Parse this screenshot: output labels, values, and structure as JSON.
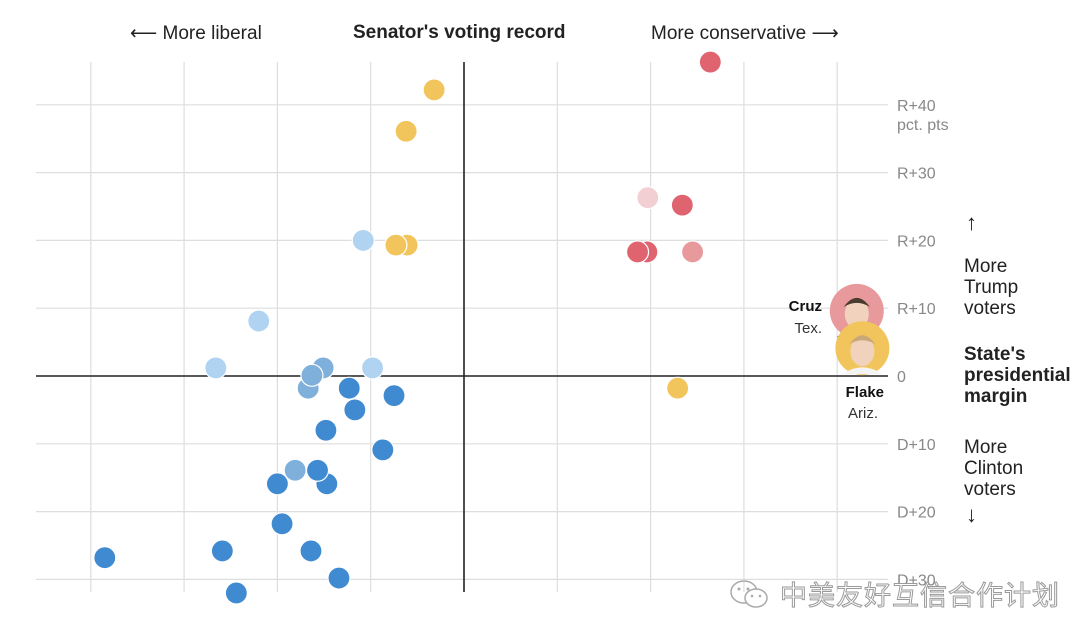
{
  "chart_data": {
    "type": "scatter",
    "title": "Senator's voting record",
    "xlabel_left": "More liberal",
    "xlabel_right": "More conservative",
    "ylabel": "State's presidential margin",
    "ylabel_top": "More Trump voters",
    "ylabel_bottom": "More Clinton voters",
    "y_unit_note": "pct. pts",
    "xlim": [
      -4.6,
      4.0
    ],
    "ylim": [
      -32,
      46
    ],
    "x_gridlines": [
      -4,
      -3,
      -2,
      -1,
      1,
      2,
      3,
      4
    ],
    "y_ticks": [
      {
        "value": 40,
        "label": "R+40"
      },
      {
        "value": 30,
        "label": "R+30"
      },
      {
        "value": 20,
        "label": "R+20"
      },
      {
        "value": 10,
        "label": "R+10"
      },
      {
        "value": 0,
        "label": "0"
      },
      {
        "value": -10,
        "label": "D+10"
      },
      {
        "value": -20,
        "label": "D+20"
      },
      {
        "value": -30,
        "label": "D+30"
      }
    ],
    "grid": true,
    "colors": {
      "republican": "#e06470",
      "republican_light": "#e8999c",
      "republican_pale": "#f2cfd3",
      "democrat": "#3f8ad0",
      "democrat_mid": "#7fb0dc",
      "democrat_light": "#afd3f0",
      "highlight": "#f2c55c"
    },
    "points": [
      {
        "x": 2.64,
        "y": 46.3,
        "color": "republican"
      },
      {
        "x": -0.32,
        "y": 42.2,
        "color": "highlight"
      },
      {
        "x": -0.62,
        "y": 36.1,
        "color": "highlight"
      },
      {
        "x": 1.97,
        "y": 26.3,
        "color": "republican_pale"
      },
      {
        "x": 2.34,
        "y": 25.2,
        "color": "republican"
      },
      {
        "x": -1.08,
        "y": 20.0,
        "color": "democrat_light"
      },
      {
        "x": -0.61,
        "y": 19.3,
        "color": "highlight"
      },
      {
        "x": -0.73,
        "y": 19.3,
        "color": "highlight"
      },
      {
        "x": 1.96,
        "y": 18.3,
        "color": "republican"
      },
      {
        "x": 1.86,
        "y": 18.3,
        "color": "republican"
      },
      {
        "x": 2.45,
        "y": 18.3,
        "color": "republican_light"
      },
      {
        "x": -2.2,
        "y": 8.1,
        "color": "democrat_light"
      },
      {
        "x": -2.66,
        "y": 1.2,
        "color": "democrat_light"
      },
      {
        "x": -0.98,
        "y": 1.2,
        "color": "democrat_light"
      },
      {
        "x": -1.51,
        "y": 1.2,
        "color": "democrat_mid"
      },
      {
        "x": -1.67,
        "y": -1.8,
        "color": "democrat_mid"
      },
      {
        "x": -1.63,
        "y": 0.1,
        "color": "democrat_mid"
      },
      {
        "x": -1.23,
        "y": -1.8,
        "color": "democrat"
      },
      {
        "x": -0.75,
        "y": -2.9,
        "color": "democrat"
      },
      {
        "x": -1.17,
        "y": -5.0,
        "color": "democrat"
      },
      {
        "x": -1.48,
        "y": -8.0,
        "color": "democrat"
      },
      {
        "x": -0.87,
        "y": -10.9,
        "color": "democrat"
      },
      {
        "x": -1.81,
        "y": -13.9,
        "color": "democrat_mid"
      },
      {
        "x": -1.47,
        "y": -15.9,
        "color": "democrat"
      },
      {
        "x": -1.57,
        "y": -13.9,
        "color": "democrat"
      },
      {
        "x": -2.0,
        "y": -15.9,
        "color": "democrat"
      },
      {
        "x": -1.95,
        "y": -21.8,
        "color": "democrat"
      },
      {
        "x": -3.85,
        "y": -26.8,
        "color": "democrat"
      },
      {
        "x": -2.59,
        "y": -25.8,
        "color": "democrat"
      },
      {
        "x": -1.64,
        "y": -25.8,
        "color": "democrat"
      },
      {
        "x": -1.34,
        "y": -29.8,
        "color": "democrat"
      },
      {
        "x": -2.44,
        "y": -32.0,
        "color": "democrat"
      },
      {
        "x": 2.29,
        "y": -1.8,
        "color": "highlight"
      }
    ],
    "annotations": [
      {
        "name": "Cruz",
        "state": "Tex.",
        "x": 4.21,
        "y": 9.6,
        "ring": "republican_light",
        "photo": "cruz-portrait"
      },
      {
        "name": "Flake",
        "state": "Ariz.",
        "x": 4.27,
        "y": 4.1,
        "ring": "highlight",
        "photo": "flake-portrait"
      }
    ]
  },
  "header": {
    "left": "More liberal",
    "center": "Senator's voting record",
    "right": "More conservative"
  },
  "side_labels": {
    "trump": [
      "More",
      "Trump",
      "voters"
    ],
    "margin": [
      "State's",
      "presidential",
      "margin"
    ],
    "clinton": [
      "More",
      "Clinton",
      "voters"
    ],
    "unit": "pct. pts"
  },
  "watermark": {
    "icon": "wechat-icon",
    "text": "中美友好互信合作计划"
  }
}
